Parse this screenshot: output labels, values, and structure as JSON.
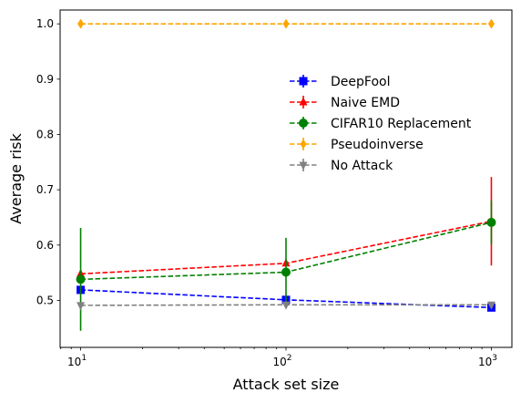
{
  "chart_data": {
    "type": "line",
    "xlabel": "Attack set size",
    "ylabel": "Average risk",
    "xscale": "log",
    "x": [
      10,
      100,
      1000
    ],
    "xtick_labels": [
      {
        "base": "10",
        "exp": "1"
      },
      {
        "base": "10",
        "exp": "2"
      },
      {
        "base": "10",
        "exp": "3"
      }
    ],
    "yticks": [
      "0.5",
      "0.6",
      "0.7",
      "0.8",
      "0.9",
      "1.0"
    ],
    "ylim": [
      0.415,
      1.025
    ],
    "xlim_log10": [
      0.9,
      3.1
    ],
    "grid": false,
    "legend_position": "center-right",
    "series": [
      {
        "name": "DeepFool",
        "color": "#0000ff",
        "marker": "square",
        "values": [
          0.519,
          0.501,
          0.487
        ],
        "errors": [
          0.0,
          0.0,
          0.005
        ]
      },
      {
        "name": "Naive EMD",
        "color": "#ff0000",
        "marker": "triangle-up",
        "values": [
          0.548,
          0.567,
          0.643
        ],
        "errors": [
          0.0,
          0.0,
          0.08
        ]
      },
      {
        "name": "CIFAR10 Replacement",
        "color": "#008000",
        "marker": "circle",
        "values": [
          0.538,
          0.551,
          0.641
        ],
        "errors": [
          0.093,
          0.062,
          0.04
        ]
      },
      {
        "name": "Pseudoinverse",
        "color": "#ffa500",
        "marker": "diamond",
        "values": [
          1.0,
          1.0,
          1.0
        ],
        "errors": [
          0.0,
          0.0,
          0.0
        ]
      },
      {
        "name": "No Attack",
        "color": "#808080",
        "marker": "triangle-down",
        "values": [
          0.491,
          0.492,
          0.492
        ],
        "errors": [
          0.0,
          0.006,
          0.005
        ]
      }
    ]
  }
}
